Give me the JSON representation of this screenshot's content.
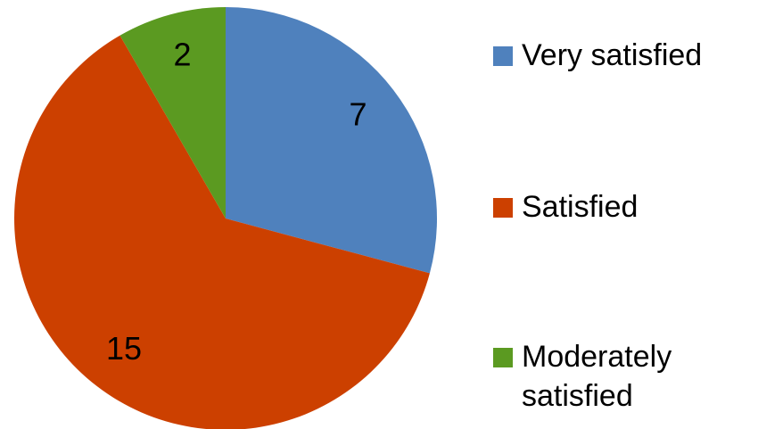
{
  "chart_data": {
    "type": "pie",
    "categories": [
      "Very satisfied",
      "Satisfied",
      "Moderately satisfied"
    ],
    "values": [
      7,
      15,
      2
    ],
    "colors": [
      "#4f81bd",
      "#cc4000",
      "#5b9a21"
    ],
    "legend": "right"
  }
}
